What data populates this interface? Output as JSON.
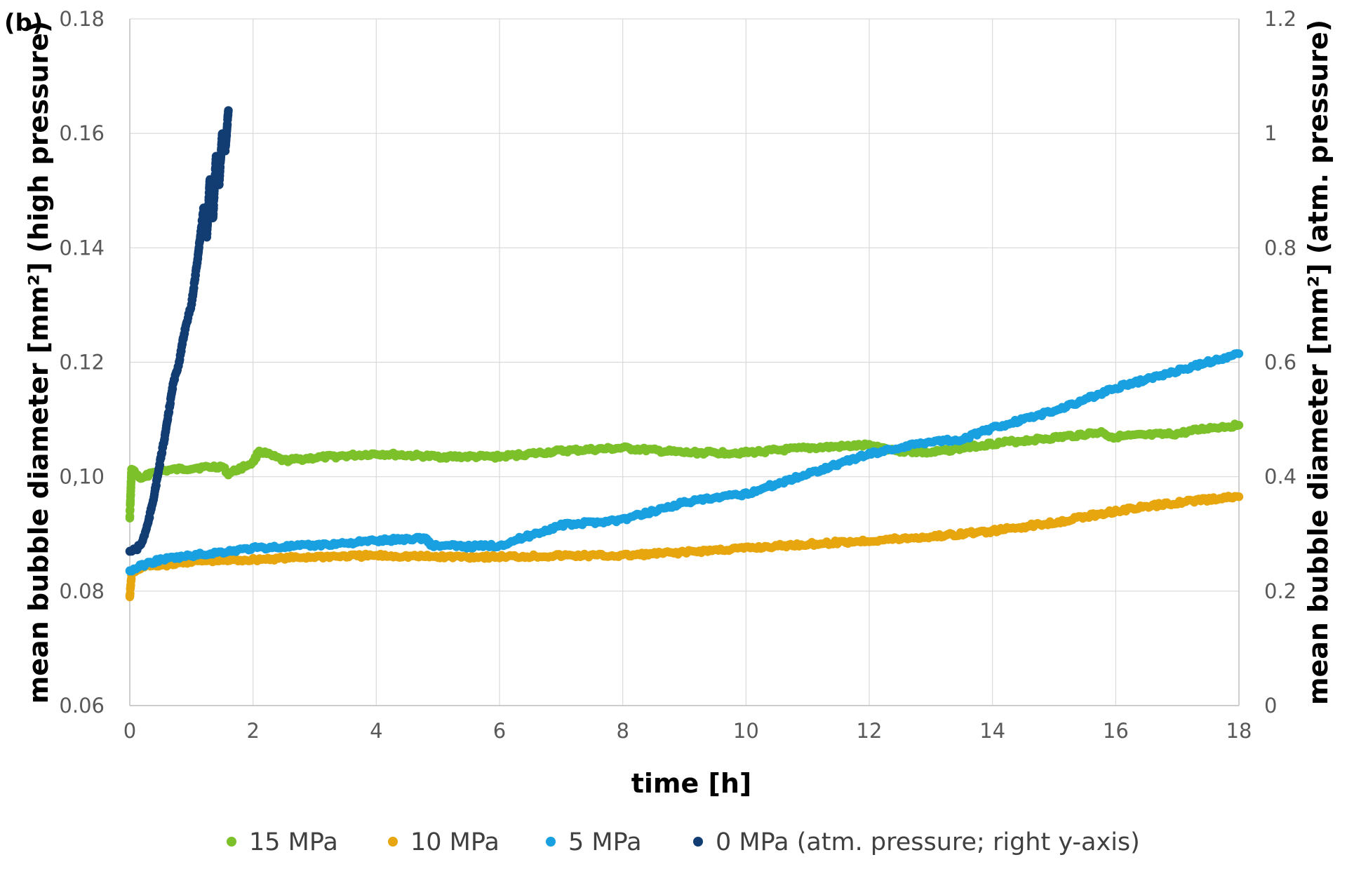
{
  "chart_data": {
    "type": "scatter",
    "panel_label": "(b)",
    "xlabel": "time [h]",
    "ylabel_left": "mean bubble diameter [mm²] (high pressure)",
    "ylabel_right": "mean bubble diameter [mm²] (atm. pressure)",
    "xlim": [
      0,
      18
    ],
    "ylim_left": [
      0.06,
      0.18
    ],
    "ylim_right": [
      0,
      1.2
    ],
    "x_ticks": [
      "0",
      "2",
      "4",
      "6",
      "8",
      "10",
      "12",
      "14",
      "16",
      "18"
    ],
    "y_left_ticks": [
      "0.06",
      "0.08",
      "0,10",
      "0.12",
      "0.14",
      "0.16",
      "0.18"
    ],
    "y_right_ticks": [
      "0",
      "0.2",
      "0.4",
      "0.6",
      "0.8",
      "1",
      "1.2"
    ],
    "grid": true,
    "legend_position": "bottom",
    "series": [
      {
        "name": "15 MPa",
        "color": "#7dc12a",
        "axis": "left",
        "points": [
          [
            0,
            0.093
          ],
          [
            0.03,
            0.1015
          ],
          [
            0.1,
            0.1005
          ],
          [
            0.2,
            0.0995
          ],
          [
            0.35,
            0.1008
          ],
          [
            0.5,
            0.101
          ],
          [
            1,
            0.1015
          ],
          [
            1.5,
            0.1018
          ],
          [
            1.6,
            0.1005
          ],
          [
            2,
            0.1025
          ],
          [
            2.1,
            0.1045
          ],
          [
            2.5,
            0.1028
          ],
          [
            3,
            0.1033
          ],
          [
            4,
            0.104
          ],
          [
            5,
            0.1035
          ],
          [
            6,
            0.1035
          ],
          [
            7,
            0.1045
          ],
          [
            8,
            0.105
          ],
          [
            9,
            0.1042
          ],
          [
            10,
            0.1042
          ],
          [
            11,
            0.105
          ],
          [
            12,
            0.1055
          ],
          [
            12.5,
            0.1045
          ],
          [
            13,
            0.1042
          ],
          [
            13.5,
            0.105
          ],
          [
            14,
            0.1058
          ],
          [
            15,
            0.1068
          ],
          [
            15.8,
            0.1078
          ],
          [
            15.9,
            0.107
          ],
          [
            16,
            0.107
          ],
          [
            17,
            0.1075
          ],
          [
            17.5,
            0.1085
          ],
          [
            18,
            0.109
          ]
        ]
      },
      {
        "name": "10 MPa",
        "color": "#e8a60e",
        "axis": "left",
        "points": [
          [
            0,
            0.079
          ],
          [
            0.03,
            0.083
          ],
          [
            0.2,
            0.0843
          ],
          [
            0.5,
            0.0845
          ],
          [
            1,
            0.0852
          ],
          [
            2,
            0.0855
          ],
          [
            3,
            0.086
          ],
          [
            4,
            0.0862
          ],
          [
            5,
            0.086
          ],
          [
            6,
            0.086
          ],
          [
            7,
            0.0862
          ],
          [
            8,
            0.0862
          ],
          [
            9,
            0.0868
          ],
          [
            10,
            0.0875
          ],
          [
            11,
            0.0882
          ],
          [
            12,
            0.0888
          ],
          [
            13,
            0.0895
          ],
          [
            14,
            0.0905
          ],
          [
            15,
            0.092
          ],
          [
            16,
            0.094
          ],
          [
            17,
            0.0955
          ],
          [
            18,
            0.0965
          ]
        ]
      },
      {
        "name": "5 MPa",
        "color": "#18a0e0",
        "axis": "left",
        "points": [
          [
            0,
            0.0835
          ],
          [
            0.2,
            0.0845
          ],
          [
            0.5,
            0.0855
          ],
          [
            1,
            0.0862
          ],
          [
            2,
            0.0875
          ],
          [
            3,
            0.088
          ],
          [
            4,
            0.0888
          ],
          [
            4.8,
            0.0893
          ],
          [
            4.9,
            0.088
          ],
          [
            5.5,
            0.0878
          ],
          [
            6,
            0.088
          ],
          [
            7,
            0.0915
          ],
          [
            8,
            0.0925
          ],
          [
            9,
            0.0955
          ],
          [
            10,
            0.097
          ],
          [
            11,
            0.1005
          ],
          [
            12,
            0.104
          ],
          [
            13,
            0.1062
          ],
          [
            13.5,
            0.1065
          ],
          [
            14,
            0.1085
          ],
          [
            15,
            0.1115
          ],
          [
            16,
            0.1155
          ],
          [
            17,
            0.1185
          ],
          [
            18,
            0.1215
          ]
        ]
      },
      {
        "name": "0 MPa (atm. pressure; right y-axis)",
        "color": "#123d73",
        "axis": "right",
        "points": [
          [
            0,
            0.27
          ],
          [
            0.1,
            0.272
          ],
          [
            0.2,
            0.285
          ],
          [
            0.3,
            0.32
          ],
          [
            0.4,
            0.37
          ],
          [
            0.5,
            0.43
          ],
          [
            0.6,
            0.49
          ],
          [
            0.7,
            0.56
          ],
          [
            0.8,
            0.6
          ],
          [
            0.9,
            0.66
          ],
          [
            1,
            0.7
          ],
          [
            1.1,
            0.78
          ],
          [
            1.2,
            0.87
          ],
          [
            1.25,
            0.82
          ],
          [
            1.3,
            0.92
          ],
          [
            1.35,
            0.85
          ],
          [
            1.4,
            0.96
          ],
          [
            1.45,
            0.91
          ],
          [
            1.5,
            1.0
          ],
          [
            1.55,
            0.97
          ],
          [
            1.6,
            1.04
          ]
        ]
      }
    ]
  }
}
